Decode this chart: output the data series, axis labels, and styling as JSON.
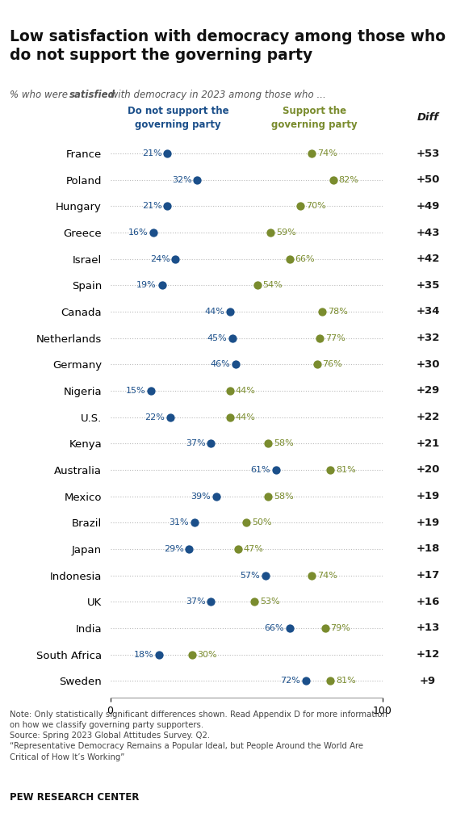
{
  "title_line1": "Low satisfaction with democracy among those who",
  "title_line2": "do not support the governing party",
  "col1_label": "Do not support the\ngoverning party",
  "col2_label": "Support the\ngoverning party",
  "diff_label": "Diff",
  "countries": [
    "France",
    "Poland",
    "Hungary",
    "Greece",
    "Israel",
    "Spain",
    "Canada",
    "Netherlands",
    "Germany",
    "Nigeria",
    "U.S.",
    "Kenya",
    "Australia",
    "Mexico",
    "Brazil",
    "Japan",
    "Indonesia",
    "UK",
    "India",
    "South Africa",
    "Sweden"
  ],
  "no_support": [
    21,
    32,
    21,
    16,
    24,
    19,
    44,
    45,
    46,
    15,
    22,
    37,
    61,
    39,
    31,
    29,
    57,
    37,
    66,
    18,
    72
  ],
  "support": [
    74,
    82,
    70,
    59,
    66,
    54,
    78,
    77,
    76,
    44,
    44,
    58,
    81,
    58,
    50,
    47,
    74,
    53,
    79,
    30,
    81
  ],
  "diff": [
    "+53",
    "+50",
    "+49",
    "+43",
    "+42",
    "+35",
    "+34",
    "+32",
    "+30",
    "+29",
    "+22",
    "+21",
    "+20",
    "+19",
    "+19",
    "+18",
    "+17",
    "+16",
    "+13",
    "+12",
    "+9"
  ],
  "blue_color": "#1B4F8A",
  "olive_color": "#7A8C2E",
  "diff_col_bg": "#E8E0CE",
  "note_line1": "Note: Only statistically significant differences shown. Read Appendix D for more information",
  "note_line2": "on how we classify governing party supporters.",
  "note_line3": "Source: Spring 2023 Global Attitudes Survey. Q2.",
  "note_line4": "“Representative Democracy Remains a Popular Ideal, but People Around the World Are",
  "note_line5": "Critical of How It’s Working”",
  "source_label": "PEW RESEARCH CENTER",
  "xlim": [
    0,
    100
  ],
  "fig_bg": "#FFFFFF"
}
